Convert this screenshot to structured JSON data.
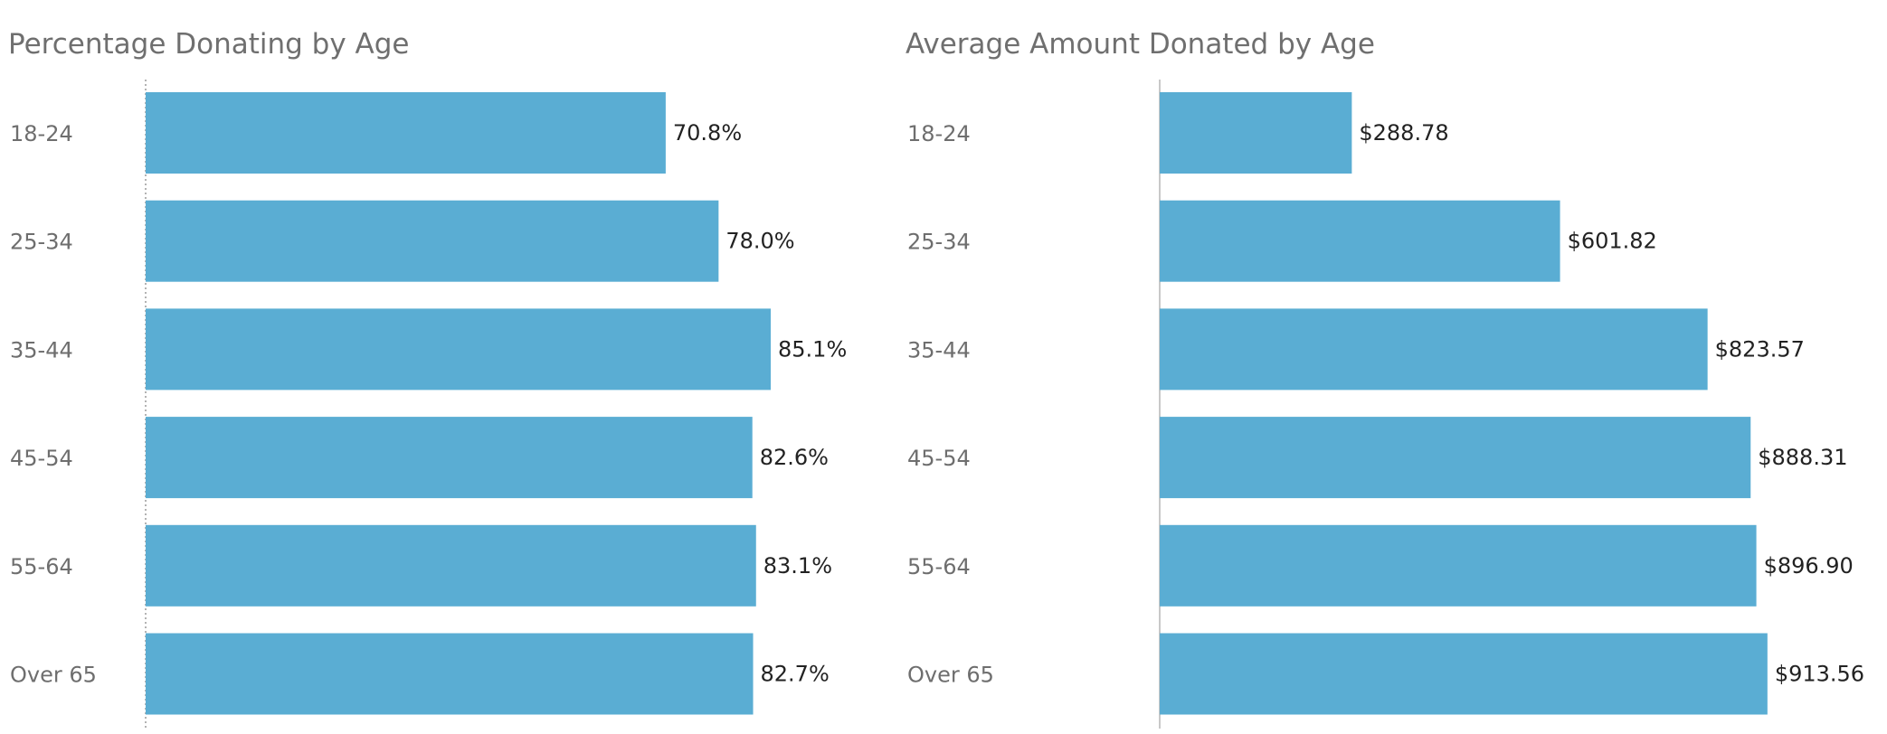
{
  "chart_data": [
    {
      "type": "bar",
      "orientation": "horizontal",
      "title": "Percentage Donating by Age",
      "categories": [
        "18-24",
        "25-34",
        "35-44",
        "45-54",
        "55-64",
        "Over 65"
      ],
      "values": [
        70.8,
        78.0,
        85.1,
        82.6,
        83.1,
        82.7
      ],
      "value_labels": [
        "70.8%",
        "78.0%",
        "85.1%",
        "82.6%",
        "83.1%",
        "82.7%"
      ],
      "xlim": [
        0,
        100
      ],
      "grid": false,
      "bar_color": "#5aadd3"
    },
    {
      "type": "bar",
      "orientation": "horizontal",
      "title": "Average Amount Donated by Age",
      "categories": [
        "18-24",
        "25-34",
        "35-44",
        "45-54",
        "55-64",
        "Over 65"
      ],
      "values": [
        288.78,
        601.82,
        823.57,
        888.31,
        896.9,
        913.56
      ],
      "value_labels": [
        "$288.78",
        "$601.82",
        "$823.57",
        "$888.31",
        "$896.90",
        "$913.56"
      ],
      "xlim": [
        0,
        1000
      ],
      "grid": false,
      "bar_color": "#5aadd3"
    }
  ]
}
